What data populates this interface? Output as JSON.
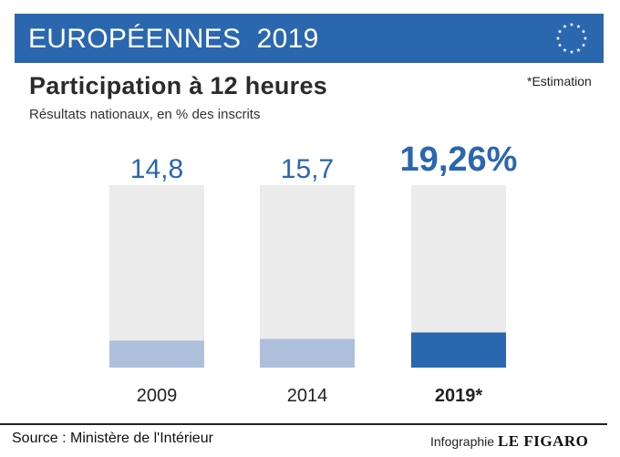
{
  "header": {
    "title": "EUROPÉENNES  2019",
    "flag_color": "#2a67ae",
    "flag_icon": "eu-stars-icon"
  },
  "subtitle": "Participation à 12 heures",
  "caption": "Résultats nationaux, en % des inscrits",
  "note": "*Estimation",
  "chart_data": {
    "type": "bar",
    "title": "Participation à 12 heures",
    "subtitle": "Résultats nationaux, en % des inscrits",
    "categories": [
      "2009",
      "2014",
      "2019*"
    ],
    "values": [
      14.8,
      15.7,
      19.26
    ],
    "value_labels": [
      "14,8",
      "15,7",
      "19,26%"
    ],
    "ylim": [
      0,
      100
    ],
    "highlight_index": 2,
    "colors": {
      "background_bar": "#ebebeb",
      "past_fill": "#aebfdb",
      "highlight_fill": "#2a67ae",
      "past_label": "#2a67ae",
      "highlight_label": "#2a67ae"
    }
  },
  "footer": {
    "source": "Source : Ministère de l'Intérieur",
    "credit_prefix": "Infographie",
    "credit_brand": "LE FIGARO"
  }
}
